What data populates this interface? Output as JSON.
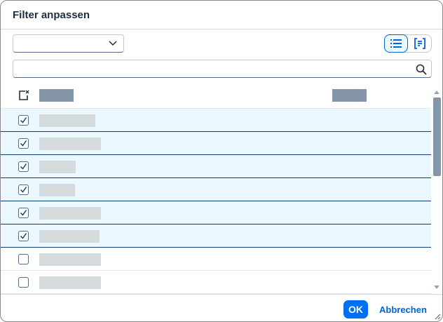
{
  "dialog": {
    "title": "Filter anpassen"
  },
  "toolbar": {
    "select_value": "",
    "search_value": "",
    "view_list_icon": "list-icon",
    "view_tree_icon": "bracket-list-icon"
  },
  "rows": [
    {
      "checked": true,
      "w": 80
    },
    {
      "checked": true,
      "w": 88
    },
    {
      "checked": true,
      "w": 52
    },
    {
      "checked": true,
      "w": 51
    },
    {
      "checked": true,
      "w": 88
    },
    {
      "checked": true,
      "w": 86
    },
    {
      "checked": false,
      "w": 88
    },
    {
      "checked": false,
      "w": 88
    }
  ],
  "footer": {
    "ok_label": "OK",
    "cancel_label": "Abbrechen"
  },
  "colors": {
    "accent": "#0070f2",
    "selected_row": "#ebf8ff"
  }
}
